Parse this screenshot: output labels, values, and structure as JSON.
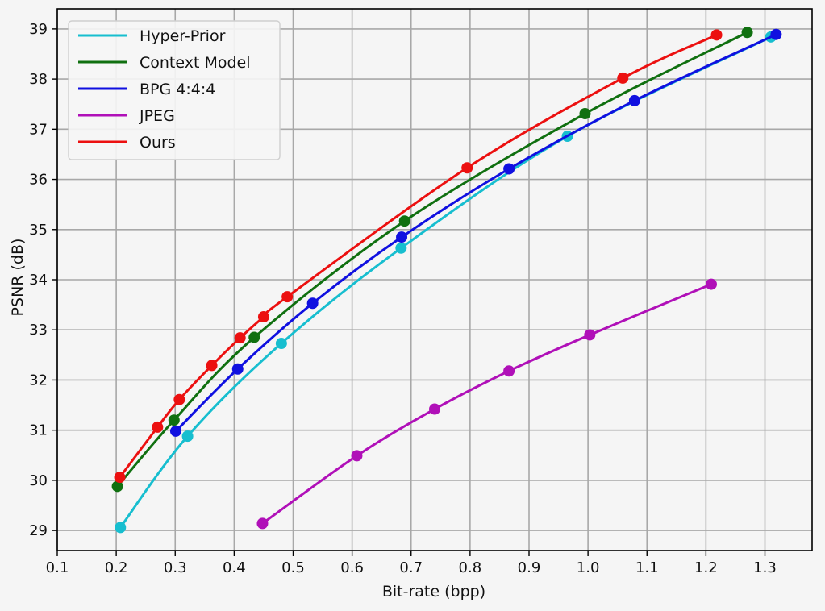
{
  "chart_data": {
    "type": "line",
    "title": "",
    "xlabel": "Bit-rate (bpp)",
    "ylabel": "PSNR (dB)",
    "xlim": [
      0.1,
      1.38
    ],
    "ylim": [
      28.6,
      39.4
    ],
    "grid": true,
    "legend_position": "top-left",
    "x_ticks": [
      0.1,
      0.2,
      0.3,
      0.4,
      0.5,
      0.6,
      0.7,
      0.8,
      0.9,
      1.0,
      1.1,
      1.2,
      1.3
    ],
    "x_tick_labels": [
      "0.1",
      "0.2",
      "0.3",
      "0.4",
      "0.5",
      "0.6",
      "0.7",
      "0.8",
      "0.9",
      "1.0",
      "1.1",
      "1.2",
      "1.3"
    ],
    "y_ticks": [
      29,
      30,
      31,
      32,
      33,
      34,
      35,
      36,
      37,
      38,
      39
    ],
    "y_tick_labels": [
      "29",
      "30",
      "31",
      "32",
      "33",
      "34",
      "35",
      "36",
      "37",
      "38",
      "39"
    ],
    "series": [
      {
        "name": "Hyper-Prior",
        "color": "#17becf",
        "x": [
          0.207,
          0.321,
          0.48,
          0.683,
          0.965,
          1.31
        ],
        "y": [
          29.06,
          30.88,
          32.73,
          34.63,
          36.86,
          38.84
        ]
      },
      {
        "name": "Context Model",
        "color": "#107010",
        "x": [
          0.202,
          0.298,
          0.434,
          0.689,
          0.995,
          1.27
        ],
        "y": [
          29.88,
          31.2,
          32.85,
          35.17,
          37.31,
          38.93
        ]
      },
      {
        "name": "BPG 4:4:4",
        "color": "#1010e0",
        "x": [
          0.301,
          0.406,
          0.533,
          0.684,
          0.866,
          1.079,
          1.319
        ],
        "y": [
          30.98,
          32.22,
          33.53,
          34.85,
          36.21,
          37.57,
          38.89
        ]
      },
      {
        "name": "JPEG",
        "color": "#b010b8",
        "x": [
          0.448,
          0.608,
          0.74,
          0.866,
          1.003,
          1.209
        ],
        "y": [
          29.14,
          30.49,
          31.42,
          32.18,
          32.9,
          33.91
        ]
      },
      {
        "name": "Ours",
        "color": "#ec1010",
        "x": [
          0.206,
          0.27,
          0.307,
          0.362,
          0.41,
          0.45,
          0.49,
          0.795,
          1.059,
          1.218
        ],
        "y": [
          30.06,
          31.06,
          31.61,
          32.29,
          32.84,
          33.26,
          33.66,
          36.23,
          38.02,
          38.88
        ]
      }
    ]
  }
}
